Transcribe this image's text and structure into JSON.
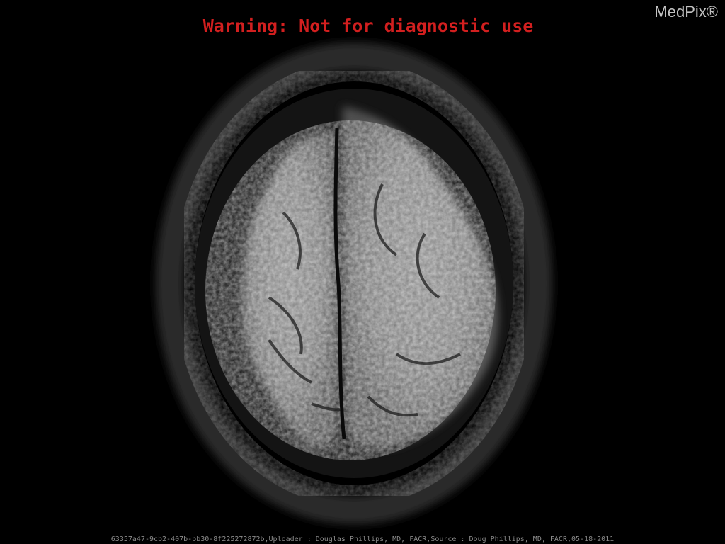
{
  "image": {
    "warning_text": "Warning: Not for diagnostic use",
    "watermark": "MedPix®",
    "caption": "63357a47-9cb2-407b-bb30-8f225272872b,Uploader : Douglas  Phillips, MD, FACR,Source : Doug Phillips, MD, FACR,05-18-2011"
  },
  "colors": {
    "background": "#000000",
    "warning": "#d21f1f",
    "tissue": "#a8a8a8"
  }
}
